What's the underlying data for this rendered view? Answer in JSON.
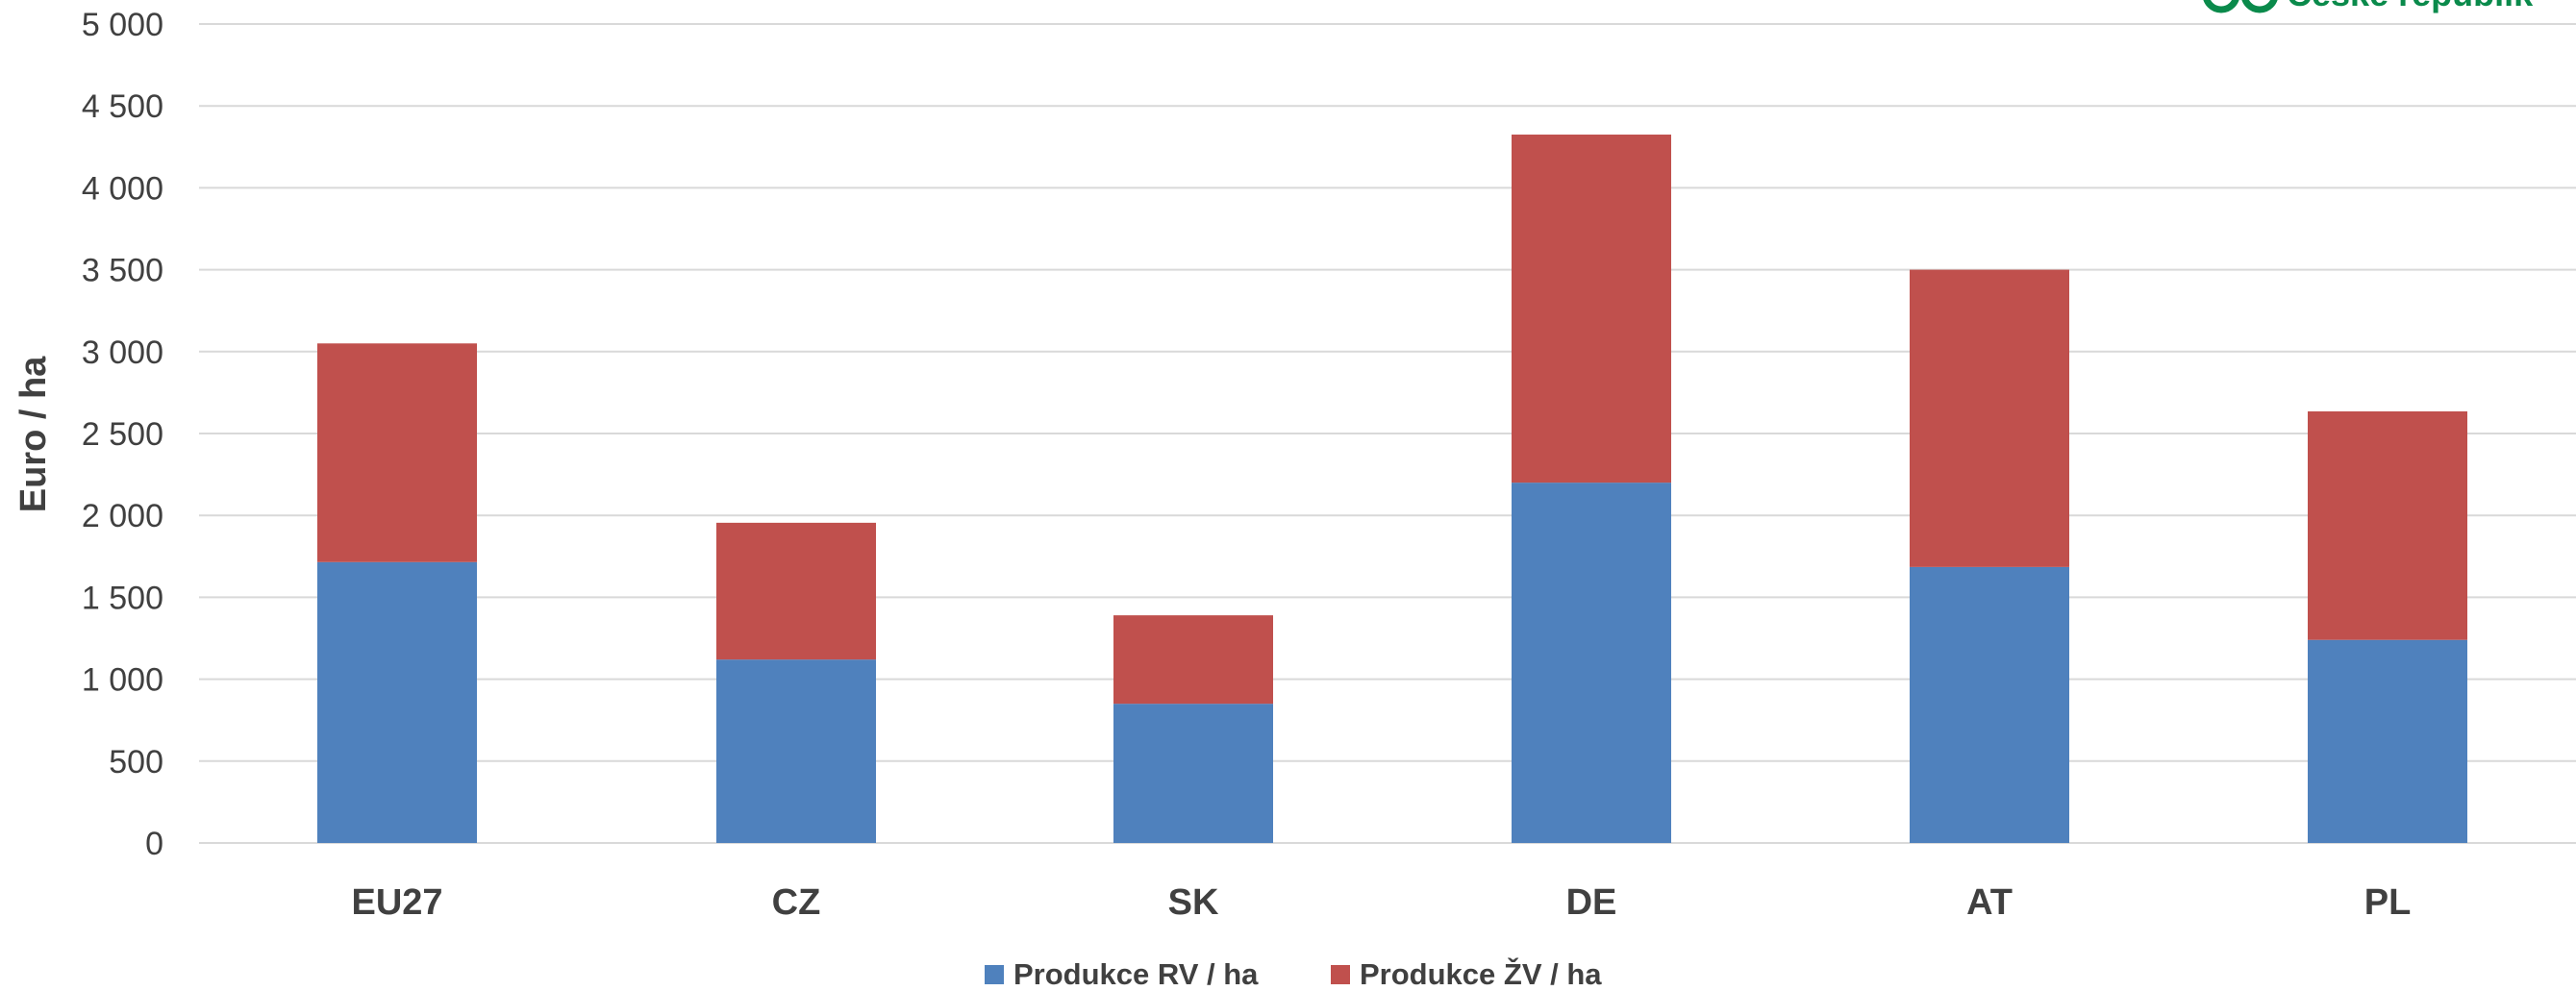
{
  "logo": {
    "text": "České republik",
    "color": "#0a8a4b"
  },
  "chart_data": {
    "type": "bar",
    "stacked": true,
    "categories": [
      "EU27",
      "CZ",
      "SK",
      "DE",
      "AT",
      "PL"
    ],
    "series": [
      {
        "name": "Produkce RV / ha",
        "color": "#4f81bd",
        "values": [
          1715,
          1120,
          850,
          2200,
          1685,
          1240
        ]
      },
      {
        "name": "Produkce ŽV / ha",
        "color": "#c0504d",
        "values": [
          1335,
          835,
          540,
          2125,
          1815,
          1395
        ]
      }
    ],
    "ylabel": "Euro / ha",
    "ylim": [
      0,
      5000
    ],
    "yticks": [
      0,
      500,
      1000,
      1500,
      2000,
      2500,
      3000,
      3500,
      4000,
      4500,
      5000
    ],
    "ytick_labels": [
      "0",
      "500",
      "1 000",
      "1 500",
      "2 000",
      "2 500",
      "3 000",
      "3 500",
      "4 000",
      "4 500",
      "5 000"
    ],
    "grid": true,
    "legend_position": "bottom",
    "gridline_color": "#d9d9d9"
  }
}
